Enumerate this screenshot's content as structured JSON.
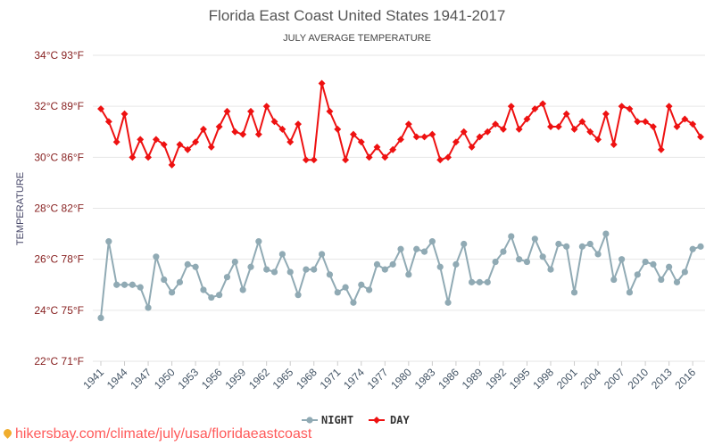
{
  "chart_data": {
    "type": "line",
    "title": "Florida East Coast United States 1941-2017",
    "subtitle": "JULY AVERAGE TEMPERATURE",
    "ylabel": "TEMPERATURE",
    "ylim": [
      22,
      34
    ],
    "y_ticks": [
      {
        "value": 22,
        "label": "22°C 71°F"
      },
      {
        "value": 24,
        "label": "24°C 75°F"
      },
      {
        "value": 26,
        "label": "26°C 78°F"
      },
      {
        "value": 28,
        "label": "28°C 82°F"
      },
      {
        "value": 30,
        "label": "30°C 86°F"
      },
      {
        "value": 32,
        "label": "32°C 89°F"
      },
      {
        "value": 34,
        "label": "34°C 93°F"
      }
    ],
    "x_tick_labels": [
      "1941",
      "1944",
      "1947",
      "1950",
      "1953",
      "1956",
      "1959",
      "1962",
      "1965",
      "1968",
      "1971",
      "1974",
      "1977",
      "1980",
      "1983",
      "1986",
      "1989",
      "1992",
      "1995",
      "1998",
      "2001",
      "2004",
      "2007",
      "2010",
      "2013",
      "2016"
    ],
    "x": [
      1941,
      1942,
      1943,
      1944,
      1945,
      1946,
      1947,
      1948,
      1949,
      1950,
      1951,
      1952,
      1953,
      1954,
      1955,
      1956,
      1957,
      1958,
      1959,
      1960,
      1961,
      1962,
      1963,
      1964,
      1965,
      1966,
      1967,
      1968,
      1969,
      1970,
      1971,
      1972,
      1973,
      1974,
      1975,
      1976,
      1977,
      1978,
      1979,
      1980,
      1981,
      1982,
      1983,
      1984,
      1985,
      1986,
      1987,
      1988,
      1989,
      1990,
      1991,
      1992,
      1993,
      1994,
      1995,
      1996,
      1997,
      1998,
      1999,
      2000,
      2001,
      2002,
      2003,
      2004,
      2005,
      2006,
      2007,
      2008,
      2009,
      2010,
      2011,
      2012,
      2013,
      2014,
      2015,
      2016,
      2017
    ],
    "series": [
      {
        "name": "NIGHT",
        "color": "#90aab4",
        "values": [
          23.7,
          26.7,
          25.0,
          25.0,
          25.0,
          24.9,
          24.1,
          26.1,
          25.2,
          24.7,
          25.1,
          25.8,
          25.7,
          24.8,
          24.5,
          24.6,
          25.3,
          25.9,
          24.8,
          25.7,
          26.7,
          25.6,
          25.5,
          26.2,
          25.5,
          24.6,
          25.6,
          25.6,
          26.2,
          25.4,
          24.7,
          24.9,
          24.3,
          25.0,
          24.8,
          25.8,
          25.6,
          25.8,
          26.4,
          25.4,
          26.4,
          26.3,
          26.7,
          25.7,
          24.3,
          25.8,
          26.6,
          25.1,
          25.1,
          25.1,
          25.9,
          26.3,
          26.9,
          26.0,
          25.9,
          26.8,
          26.1,
          25.6,
          26.6,
          26.5,
          24.7,
          26.5,
          26.6,
          26.2,
          27.0,
          25.2,
          26.0,
          24.7,
          25.4,
          25.9,
          25.8,
          25.2,
          25.7,
          25.1,
          25.5,
          26.4,
          26.5
        ]
      },
      {
        "name": "DAY",
        "color": "#ee1111",
        "values": [
          31.9,
          31.4,
          30.6,
          31.7,
          30.0,
          30.7,
          30.0,
          30.7,
          30.5,
          29.7,
          30.5,
          30.3,
          30.6,
          31.1,
          30.4,
          31.2,
          31.8,
          31.0,
          30.9,
          31.8,
          30.9,
          32.0,
          31.4,
          31.1,
          30.6,
          31.3,
          29.9,
          29.9,
          32.9,
          31.8,
          31.1,
          29.9,
          30.9,
          30.6,
          30.0,
          30.4,
          30.0,
          30.3,
          30.7,
          31.3,
          30.8,
          30.8,
          30.9,
          29.9,
          30.0,
          30.6,
          31.0,
          30.4,
          30.8,
          31.0,
          31.3,
          31.1,
          32.0,
          31.1,
          31.5,
          31.9,
          32.1,
          31.2,
          31.2,
          31.7,
          31.1,
          31.4,
          31.0,
          30.7,
          31.7,
          30.5,
          32.0,
          31.9,
          31.4,
          31.4,
          31.2,
          30.3,
          32.0,
          31.2,
          31.5,
          31.3,
          30.8
        ]
      }
    ],
    "legend_position": "bottom-center",
    "grid": true
  },
  "footer": {
    "credit": "hikersbay.com/climate/july/usa/floridaeastcoast"
  }
}
